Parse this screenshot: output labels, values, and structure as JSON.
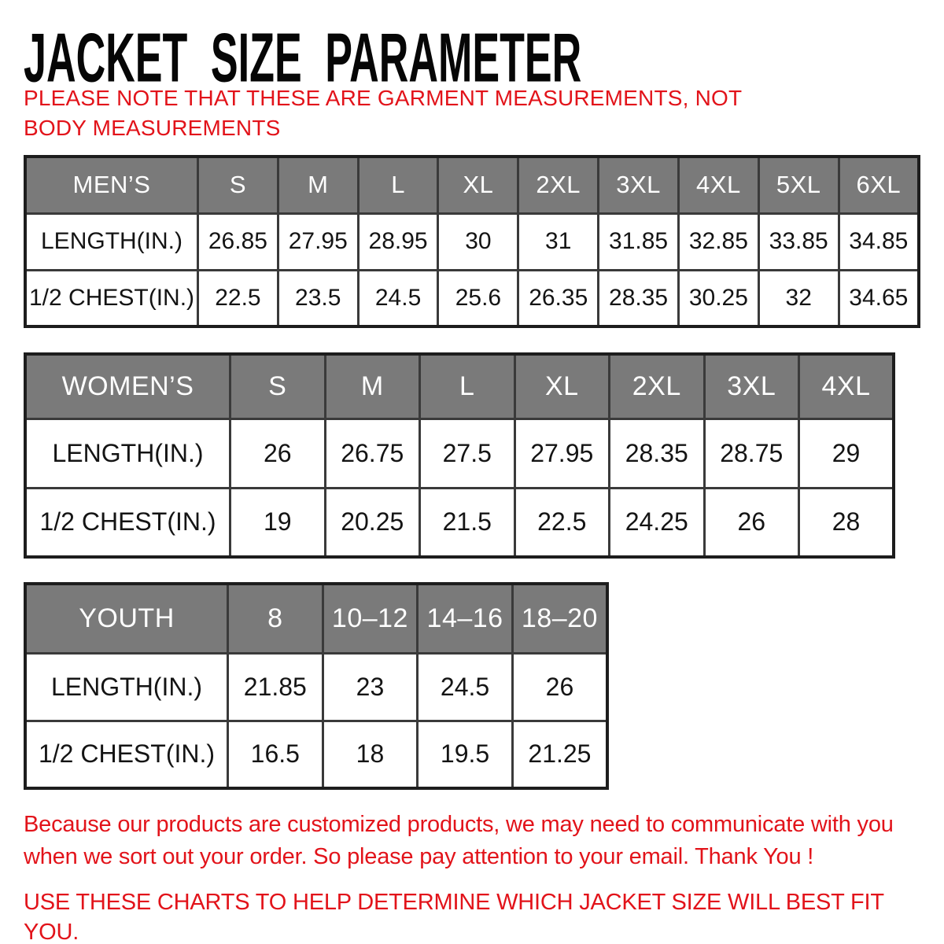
{
  "page": {
    "title": "JACKET SIZE PARAMETER",
    "note": "PLEASE NOTE THAT THESE ARE GARMENT MEASUREMENTS, NOT BODY MEASUREMENTS"
  },
  "tables": [
    {
      "id": "mens",
      "header": [
        "MEN’S",
        "S",
        "M",
        "L",
        "XL",
        "2XL",
        "3XL",
        "4XL",
        "5XL",
        "6XL"
      ],
      "rows": [
        {
          "label": "LENGTH(IN.)",
          "values": [
            "26.85",
            "27.95",
            "28.95",
            "30",
            "31",
            "31.85",
            "32.85",
            "33.85",
            "34.85"
          ]
        },
        {
          "label": "1/2 CHEST(IN.)",
          "values": [
            "22.5",
            "23.5",
            "24.5",
            "25.6",
            "26.35",
            "28.35",
            "30.25",
            "32",
            "34.65"
          ]
        }
      ]
    },
    {
      "id": "womens",
      "header": [
        "WOMEN’S",
        "S",
        "M",
        "L",
        "XL",
        "2XL",
        "3XL",
        "4XL"
      ],
      "rows": [
        {
          "label": "LENGTH(IN.)",
          "values": [
            "26",
            "26.75",
            "27.5",
            "27.95",
            "28.35",
            "28.75",
            "29"
          ]
        },
        {
          "label": "1/2 CHEST(IN.)",
          "values": [
            "19",
            "20.25",
            "21.5",
            "22.5",
            "24.25",
            "26",
            "28"
          ]
        }
      ]
    },
    {
      "id": "youth",
      "header": [
        "YOUTH",
        "8",
        "10–12",
        "14–16",
        "18–20"
      ],
      "rows": [
        {
          "label": "LENGTH(IN.)",
          "values": [
            "21.85",
            "23",
            "24.5",
            "26"
          ]
        },
        {
          "label": "1/2 CHEST(IN.)",
          "values": [
            "16.5",
            "18",
            "19.5",
            "21.25"
          ]
        }
      ]
    }
  ],
  "footer": {
    "paragraph": "Because our products are customized products, we may need to communicate with you when we sort out your order. So please pay attention to your email. Thank You !",
    "cta": "USE THESE CHARTS TO HELP DETERMINE WHICH JACKET SIZE WILL BEST FIT YOU."
  },
  "colors": {
    "accent_red": "#e2131a",
    "header_gray": "#7a7a7a",
    "border_dark": "#3a3a3a",
    "text_black": "#141414"
  }
}
